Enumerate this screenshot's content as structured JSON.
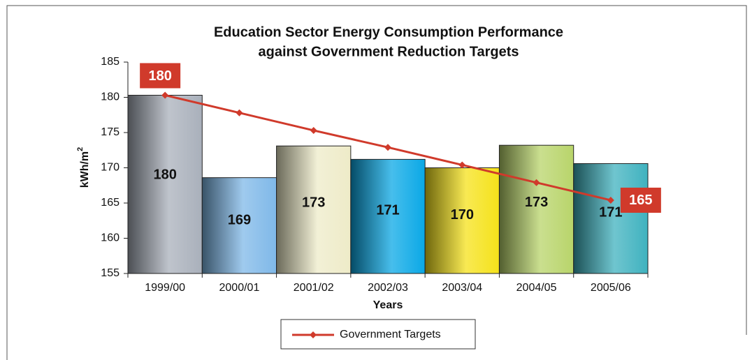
{
  "chart_data": {
    "type": "bar",
    "title": [
      "Education Sector Energy Consumption Performance",
      "against Government Reduction Targets"
    ],
    "y_label": "kWh/m",
    "y_label_sup": "2",
    "x_label": "Years",
    "categories": [
      "1999/00",
      "2000/01",
      "2001/02",
      "2002/03",
      "2003/04",
      "2004/05",
      "2005/06"
    ],
    "series": [
      {
        "type": "bar",
        "colors": [
          "#a9b0bb",
          "#7fb8e8",
          "#eeebc8",
          "#0aa8e6",
          "#f5e21a",
          "#b8d46a",
          "#3fb2bf"
        ],
        "values": [
          180.3,
          168.6,
          173.1,
          171.2,
          170.0,
          173.2,
          170.6
        ],
        "value_labels": [
          "180",
          "169",
          "173",
          "171",
          "170",
          "173",
          "171"
        ]
      },
      {
        "type": "line",
        "name": "Government Targets",
        "color": "#d03a2b",
        "values": [
          180.3,
          177.8,
          175.3,
          172.9,
          170.4,
          167.9,
          165.4
        ],
        "value_labels": [
          "180",
          null,
          null,
          null,
          null,
          null,
          "165"
        ]
      }
    ],
    "ylim": [
      155,
      185
    ],
    "yticks": [
      155,
      160,
      165,
      170,
      175,
      180,
      185
    ],
    "legend": "bottom"
  }
}
